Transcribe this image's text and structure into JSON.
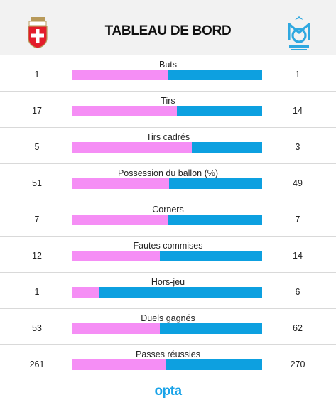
{
  "header": {
    "title": "TABLEAU DE BORD",
    "home_logo_icon": "evian-crest-icon",
    "away_logo_icon": "olympique-marseille-crest-icon"
  },
  "colors": {
    "home": "#f58ef5",
    "away": "#0da0e0"
  },
  "stats": [
    {
      "label": "Buts",
      "home": "1",
      "away": "1",
      "home_share": 0.5
    },
    {
      "label": "Tirs",
      "home": "17",
      "away": "14",
      "home_share": 0.55
    },
    {
      "label": "Tirs cadrés",
      "home": "5",
      "away": "3",
      "home_share": 0.63
    },
    {
      "label": "Possession du ballon (%)",
      "home": "51",
      "away": "49",
      "home_share": 0.51
    },
    {
      "label": "Corners",
      "home": "7",
      "away": "7",
      "home_share": 0.5
    },
    {
      "label": "Fautes commises",
      "home": "12",
      "away": "14",
      "home_share": 0.46
    },
    {
      "label": "Hors-jeu",
      "home": "1",
      "away": "6",
      "home_share": 0.14
    },
    {
      "label": "Duels gagnés",
      "home": "53",
      "away": "62",
      "home_share": 0.46
    },
    {
      "label": "Passes réussies",
      "home": "261",
      "away": "270",
      "home_share": 0.49
    }
  ],
  "footer": {
    "brand": "opta"
  }
}
